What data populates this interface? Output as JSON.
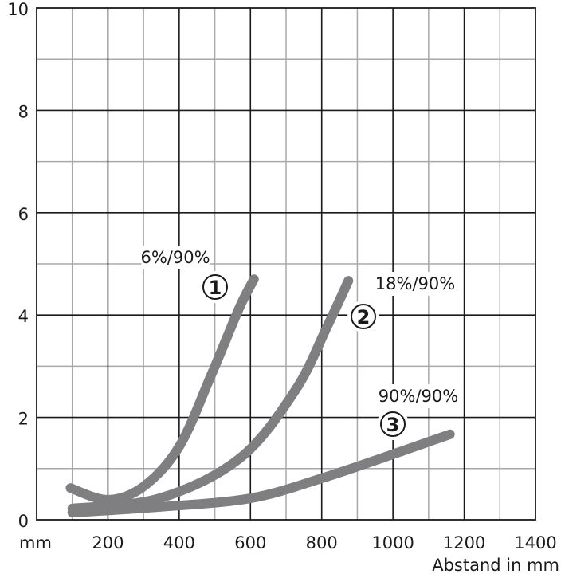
{
  "chart_data": {
    "type": "line",
    "title": "",
    "xlabel": "Abstand in mm",
    "x_unit_label": "mm",
    "ylabel": "",
    "xlim": [
      0,
      1400
    ],
    "ylim": [
      0,
      10
    ],
    "x_ticks": [
      "200",
      "400",
      "600",
      "800",
      "1000",
      "1200",
      "1400"
    ],
    "y_ticks": [
      "0",
      "2",
      "4",
      "6",
      "8",
      "10"
    ],
    "grid": true,
    "line_color": "#7f7f82",
    "series": [
      {
        "name": "6%/90%",
        "marker": "①",
        "x": [
          95,
          200,
          300,
          400,
          490,
          570,
          610
        ],
        "y": [
          0.62,
          0.39,
          0.65,
          1.43,
          2.83,
          4.16,
          4.7
        ]
      },
      {
        "name": "18%/90%",
        "marker": "②",
        "x": [
          100,
          345,
          570,
          725,
          815,
          875
        ],
        "y": [
          0.22,
          0.42,
          1.2,
          2.52,
          3.77,
          4.67
        ]
      },
      {
        "name": "90%/90%",
        "marker": "③",
        "x": [
          100,
          345,
          600,
          800,
          1000,
          1160
        ],
        "y": [
          0.14,
          0.25,
          0.42,
          0.81,
          1.28,
          1.67
        ]
      }
    ]
  }
}
